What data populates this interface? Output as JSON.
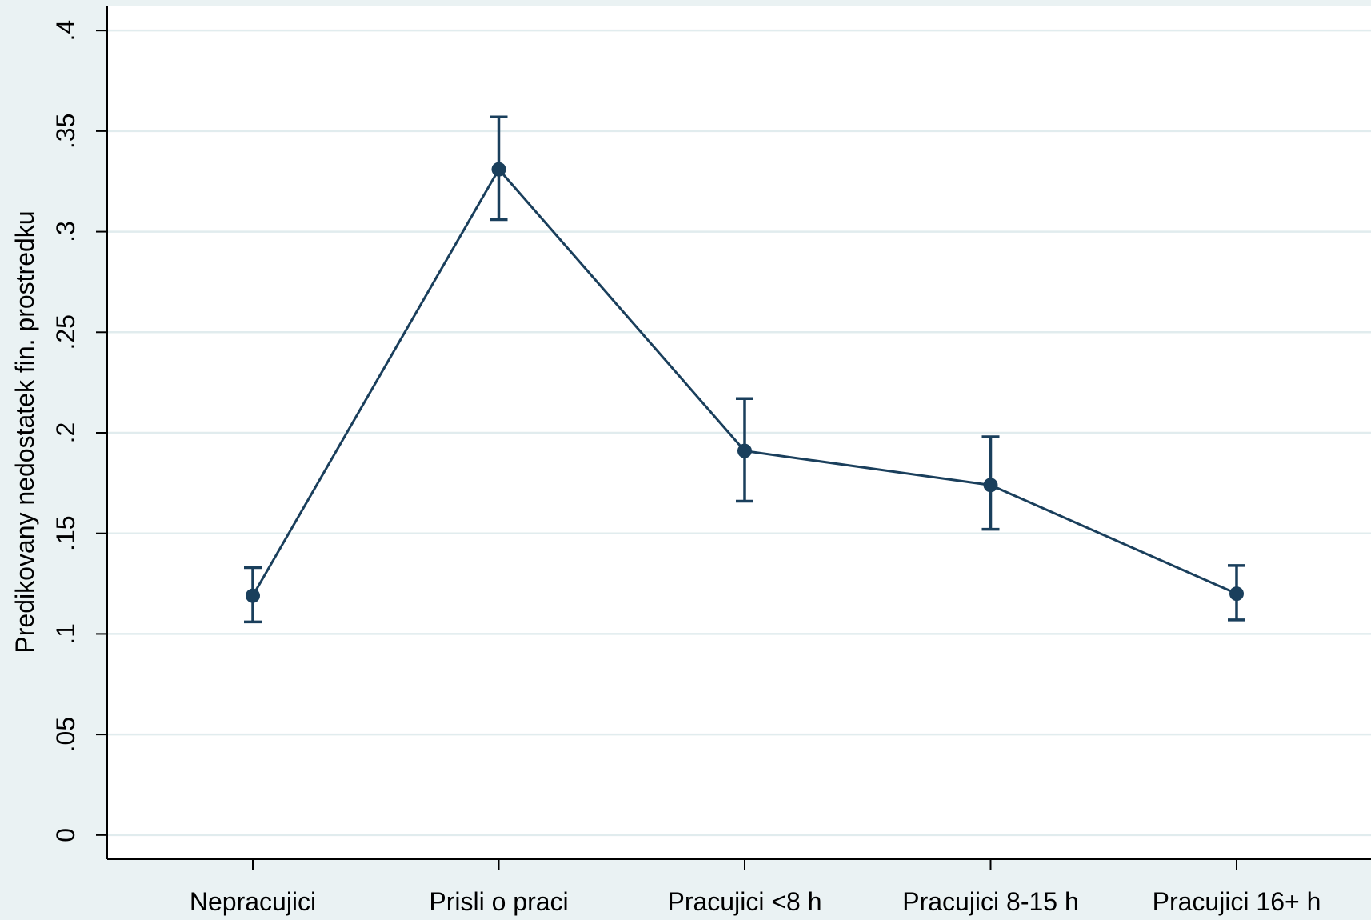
{
  "chart_data": {
    "type": "line",
    "title": "",
    "xlabel": "",
    "ylabel": "Predikovany nedostatek fin. prostredku",
    "categories": [
      "Nepracujici",
      "Prisli o praci",
      "Pracujici <8 h",
      "Pracujici 8-15 h",
      "Pracujici 16+ h"
    ],
    "series": [
      {
        "values": [
          0.119,
          0.331,
          0.191,
          0.174,
          0.12
        ],
        "ci_lower": [
          0.106,
          0.306,
          0.166,
          0.152,
          0.107
        ],
        "ci_upper": [
          0.133,
          0.357,
          0.217,
          0.198,
          0.134
        ]
      }
    ],
    "yticks": [
      0,
      0.05,
      0.1,
      0.15,
      0.2,
      0.25,
      0.3,
      0.35,
      0.4
    ],
    "ytick_labels": [
      "0",
      ".05",
      ".1",
      ".15",
      ".2",
      ".25",
      ".3",
      ".35",
      ".4"
    ],
    "ylim": [
      -0.012,
      0.412
    ],
    "grid": true,
    "legend": "none",
    "colors": {
      "background": "#eaf2f3",
      "plot_area": "#ffffff",
      "grid": "#e1ecee",
      "series": "#1a3f5c",
      "axis": "#000000"
    }
  }
}
